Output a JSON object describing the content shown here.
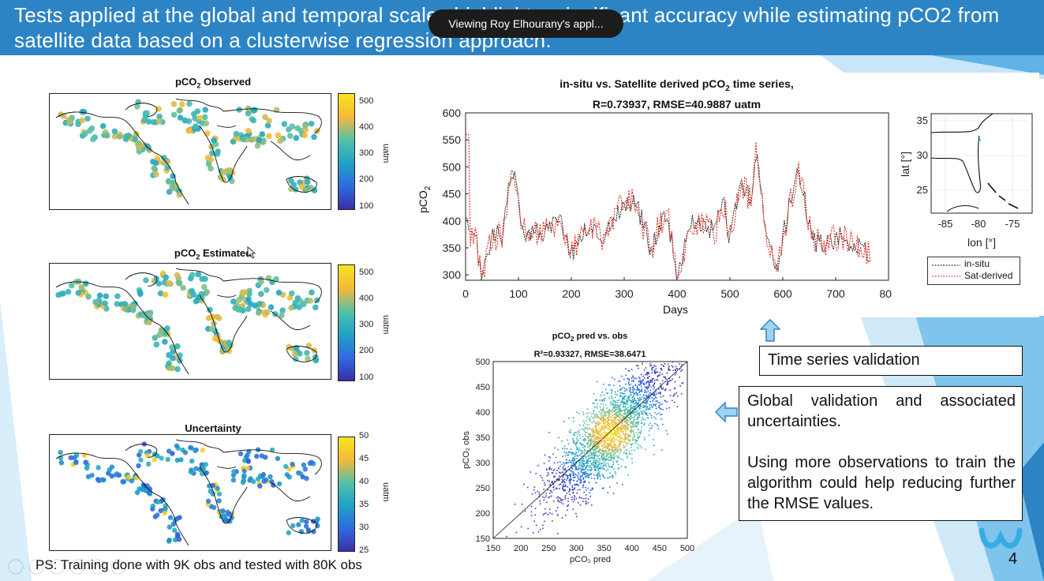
{
  "header": {
    "title": "Tests applied at the global and temporal scales highlight a significant accuracy while estimating pCO2 from satellite data based on a clusterwise regression approach.",
    "viewing_notice": "Viewing Roy Elhourany's appl..."
  },
  "maps": [
    {
      "title_main": "pCO",
      "title_sub": "2",
      "title_rest": " Observed",
      "ticks": [
        "500",
        "400",
        "300",
        "200",
        "100"
      ],
      "unit": "uatm"
    },
    {
      "title_main": "pCO",
      "title_sub": "2",
      "title_rest": " Estimated",
      "ticks": [
        "500",
        "400",
        "300",
        "200",
        "100"
      ],
      "unit": "uatm"
    },
    {
      "title_main": "Uncertainty",
      "title_sub": "",
      "title_rest": "",
      "ticks": [
        "50",
        "45",
        "40",
        "35",
        "30",
        "25"
      ],
      "unit": "uatm"
    }
  ],
  "timeseries": {
    "title_line1": "in-situ vs. Satellite derived pCO",
    "title_sub": "2",
    "title_rest": " time series,",
    "title_line2": "R=0.73937, RMSE=40.9887 uatm",
    "ylabel": "pCO",
    "ylabel_sub": "2",
    "xlabel": "Days",
    "yticks": [
      "600",
      "550",
      "500",
      "450",
      "400",
      "350",
      "300"
    ],
    "xticks": [
      "0",
      "100",
      "200",
      "300",
      "400",
      "500",
      "600",
      "700",
      "800"
    ],
    "legend": [
      "in-situ",
      "Sat-derived"
    ]
  },
  "location_map": {
    "yticks": [
      "35",
      "30",
      "25"
    ],
    "xticks": [
      "-85",
      "-80",
      "-75"
    ],
    "ylabel": "lat [°]",
    "xlabel": "lon [°]"
  },
  "scatter": {
    "title": "pCO",
    "title_sub": "2",
    "title_rest": " pred vs. obs",
    "stats": "R²=0.93327, RMSE=38.6471",
    "yticks": [
      "500",
      "450",
      "400",
      "350",
      "300",
      "250",
      "200",
      "150"
    ],
    "xticks": [
      "150",
      "200",
      "250",
      "300",
      "350",
      "400",
      "450",
      "500"
    ],
    "ylabel": "pCO₂ obs",
    "xlabel": "pCO₂ pred"
  },
  "callouts": {
    "time_series": "Time series validation",
    "global_1": "Global validation and associated uncertainties.",
    "global_2": "Using more observations to train the algorithm could help reducing further the RMSE values."
  },
  "footer": {
    "note": "PS: Training done with 9K obs and tested with 80K obs",
    "page_number": "4"
  },
  "colors": {
    "banner": "#2d84c4",
    "accent_light": "#9fd3f2",
    "in_situ": "#111111",
    "sat_derived": "#e0281e"
  }
}
